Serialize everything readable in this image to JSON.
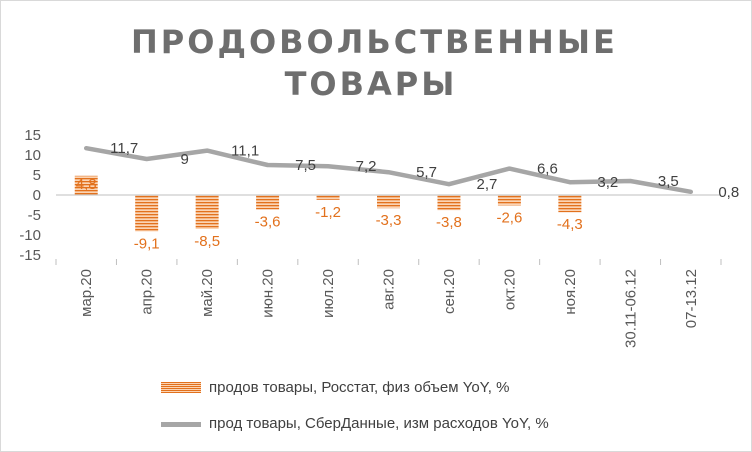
{
  "chart_data": {
    "type": "bar",
    "title_lines": [
      "ПРОДОВОЛЬСТВЕННЫЕ",
      "ТОВАРЫ"
    ],
    "categories": [
      "мар.20",
      "апр.20",
      "май.20",
      "июн.20",
      "июл.20",
      "авг.20",
      "сен.20",
      "окт.20",
      "ноя.20",
      "30.11-06.12",
      "07-13.12"
    ],
    "series": [
      {
        "name": "продов товары, Росстат, физ объем YoY, %",
        "type": "bar",
        "color": "#e2711d",
        "values": [
          4.8,
          -9.1,
          -8.5,
          -3.6,
          -1.2,
          -3.3,
          -3.8,
          -2.6,
          -4.3,
          null,
          null
        ],
        "labels": [
          "4,8",
          "-9,1",
          "-8,5",
          "-3,6",
          "-1,2",
          "-3,3",
          "-3,8",
          "-2,6",
          "-4,3",
          "",
          ""
        ]
      },
      {
        "name": "прод товары, СберДанные, изм расходов YoY, %",
        "type": "line",
        "color": "#a6a6a6",
        "values": [
          11.7,
          9,
          11.1,
          7.5,
          7.2,
          5.7,
          2.7,
          6.6,
          3.2,
          3.5,
          0.8
        ],
        "labels": [
          "11,7",
          "9",
          "11,1",
          "7,5",
          "7,2",
          "5,7",
          "2,7",
          "6,6",
          "3,2",
          "3,5",
          "0,8"
        ]
      }
    ],
    "yticks": [
      15,
      10,
      5,
      0,
      -5,
      -10,
      -15
    ],
    "ylim": [
      -15,
      15
    ],
    "legend_position": "bottom"
  }
}
